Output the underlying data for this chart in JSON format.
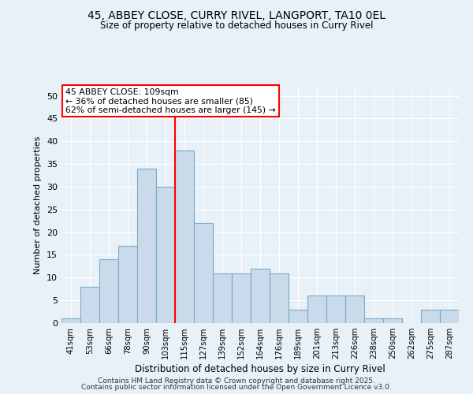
{
  "title1": "45, ABBEY CLOSE, CURRY RIVEL, LANGPORT, TA10 0EL",
  "title2": "Size of property relative to detached houses in Curry Rivel",
  "xlabel": "Distribution of detached houses by size in Curry Rivel",
  "ylabel": "Number of detached properties",
  "categories": [
    "41sqm",
    "53sqm",
    "66sqm",
    "78sqm",
    "90sqm",
    "103sqm",
    "115sqm",
    "127sqm",
    "139sqm",
    "152sqm",
    "164sqm",
    "176sqm",
    "189sqm",
    "201sqm",
    "213sqm",
    "226sqm",
    "238sqm",
    "250sqm",
    "262sqm",
    "275sqm",
    "287sqm"
  ],
  "values": [
    1,
    8,
    14,
    17,
    34,
    30,
    38,
    22,
    11,
    11,
    12,
    11,
    3,
    6,
    6,
    6,
    1,
    1,
    0,
    3,
    3
  ],
  "bar_color": "#c9daea",
  "bar_edge_color": "#7aaac8",
  "red_line_index": 6,
  "red_line_label": "45 ABBEY CLOSE: 109sqm",
  "annotation_line1": "← 36% of detached houses are smaller (85)",
  "annotation_line2": "62% of semi-detached houses are larger (145) →",
  "vline_color": "red",
  "ylim": [
    0,
    52
  ],
  "yticks": [
    0,
    5,
    10,
    15,
    20,
    25,
    30,
    35,
    40,
    45,
    50
  ],
  "background_color": "#e8f0f8",
  "footer1": "Contains HM Land Registry data © Crown copyright and database right 2025.",
  "footer2": "Contains public sector information licensed under the Open Government Licence v3.0."
}
